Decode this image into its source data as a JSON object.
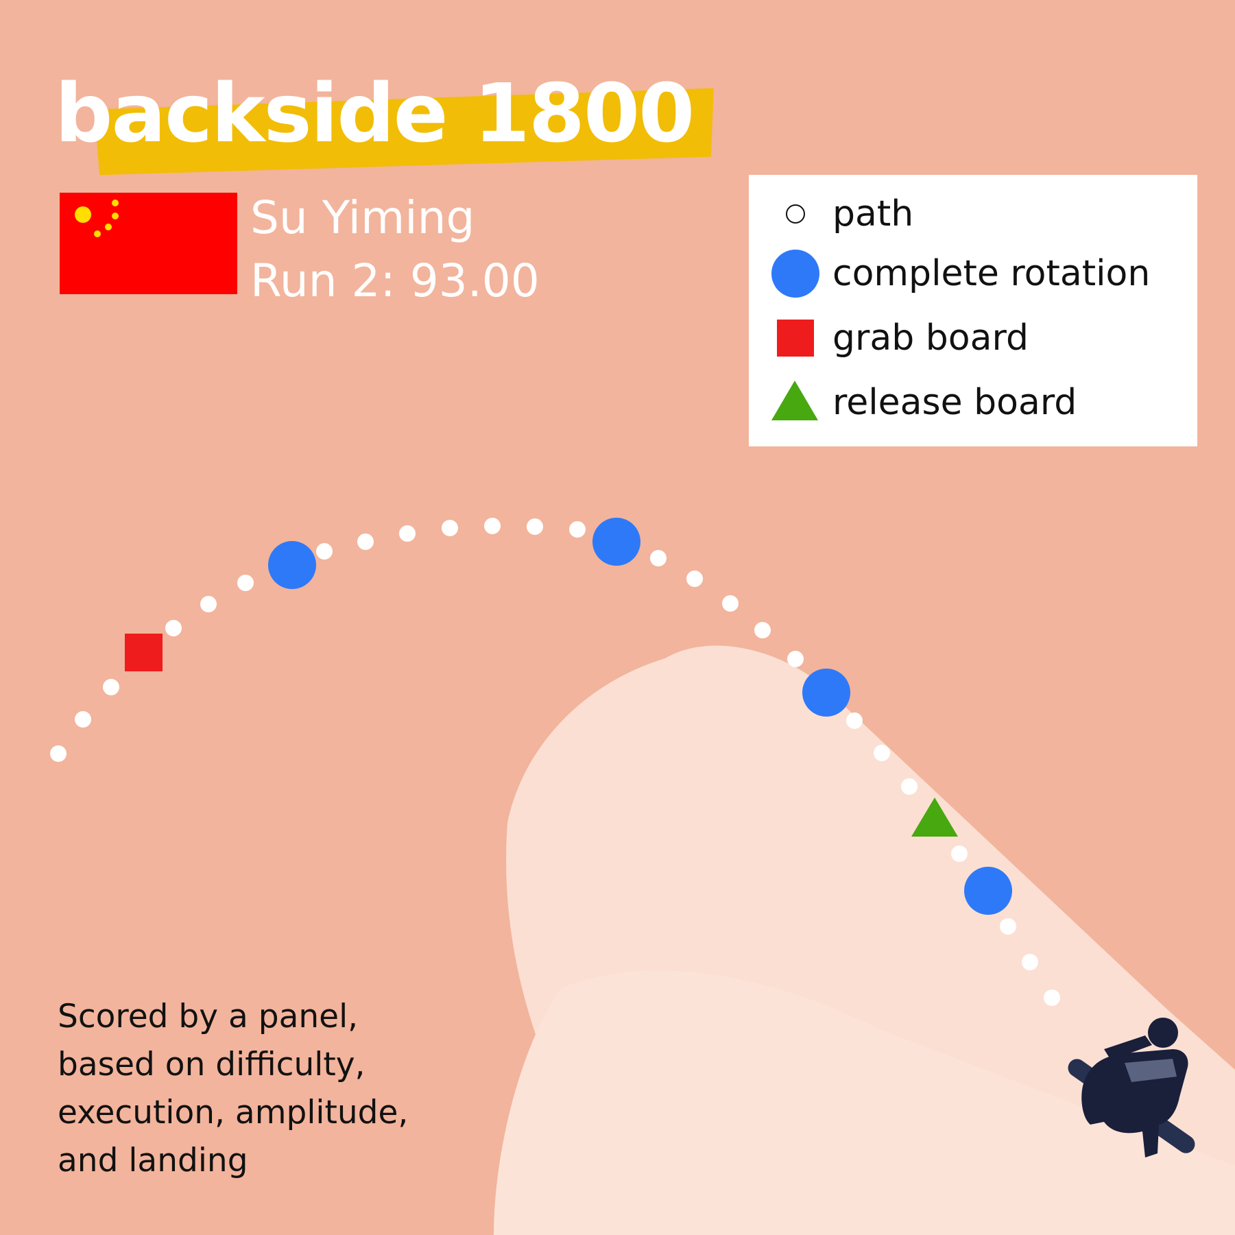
{
  "title": "backside 1800",
  "athlete": {
    "name": "Su Yiming",
    "score_line": "Run 2: 93.00",
    "flag_icon": "china-flag-icon"
  },
  "legend": {
    "items": [
      {
        "label": "path",
        "icon": "path-dot-icon",
        "color": "#ffffff"
      },
      {
        "label": "complete rotation",
        "icon": "rotation-circle-icon",
        "color": "#2e79f8"
      },
      {
        "label": "grab board",
        "icon": "grab-square-icon",
        "color": "#ee1c1c"
      },
      {
        "label": "release board",
        "icon": "release-triangle-icon",
        "color": "#47a80f"
      }
    ]
  },
  "footnote_lines": [
    "Scored by a panel,",
    "based on difficulty,",
    "execution, amplitude,",
    "and landing"
  ],
  "colors": {
    "background": "#f2b49c",
    "title_highlight": "#f2bd07",
    "snow": "#fbdfd3",
    "path_dot": "#ffffff",
    "rotation": "#2e79f8",
    "grab": "#ee1c1c",
    "release": "#47a80f",
    "flag_red": "#fe0000",
    "flag_star": "#ffde00"
  }
}
